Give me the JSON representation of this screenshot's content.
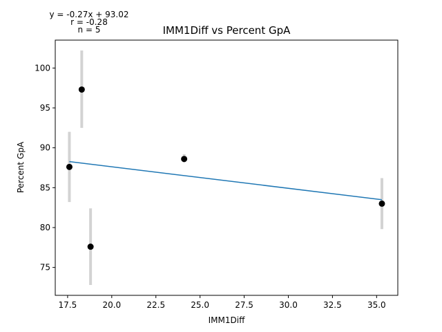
{
  "chart_data": {
    "type": "scatter",
    "title": "IMM1Diff vs Percent GpA",
    "xlabel": "IMM1Diff",
    "ylabel": "Percent GpA",
    "xlim": [
      16.8,
      36.2
    ],
    "ylim": [
      71.5,
      103.5
    ],
    "x_ticks": [
      17.5,
      20.0,
      22.5,
      25.0,
      27.5,
      30.0,
      32.5,
      35.0
    ],
    "x_tick_labels": [
      "17.5",
      "20.0",
      "22.5",
      "25.0",
      "27.5",
      "30.0",
      "32.5",
      "35.0"
    ],
    "y_ticks": [
      75,
      80,
      85,
      90,
      95,
      100
    ],
    "y_tick_labels": [
      "75",
      "80",
      "85",
      "90",
      "95",
      "100"
    ],
    "grid": false,
    "points": [
      {
        "x": 17.6,
        "y": 87.6,
        "err_low": 83.2,
        "err_high": 92.0
      },
      {
        "x": 18.3,
        "y": 97.3,
        "err_low": 92.5,
        "err_high": 102.2
      },
      {
        "x": 18.8,
        "y": 77.6,
        "err_low": 72.8,
        "err_high": 82.4
      },
      {
        "x": 24.1,
        "y": 88.6,
        "err_low": 88.2,
        "err_high": 89.2
      },
      {
        "x": 35.3,
        "y": 83.0,
        "err_low": 79.8,
        "err_high": 86.2
      }
    ],
    "fit_line": {
      "slope": -0.27,
      "intercept": 93.02,
      "x_start": 17.6,
      "x_end": 35.3
    },
    "annotations": {
      "equation": "y = -0.27x + 93.02",
      "r_text": "r = -0.28",
      "n_text": "n = 5"
    },
    "colors": {
      "points": "#000000",
      "error_bars": "#d3d3d3",
      "fit_line": "#1f77b4",
      "axes": "#000000"
    }
  }
}
